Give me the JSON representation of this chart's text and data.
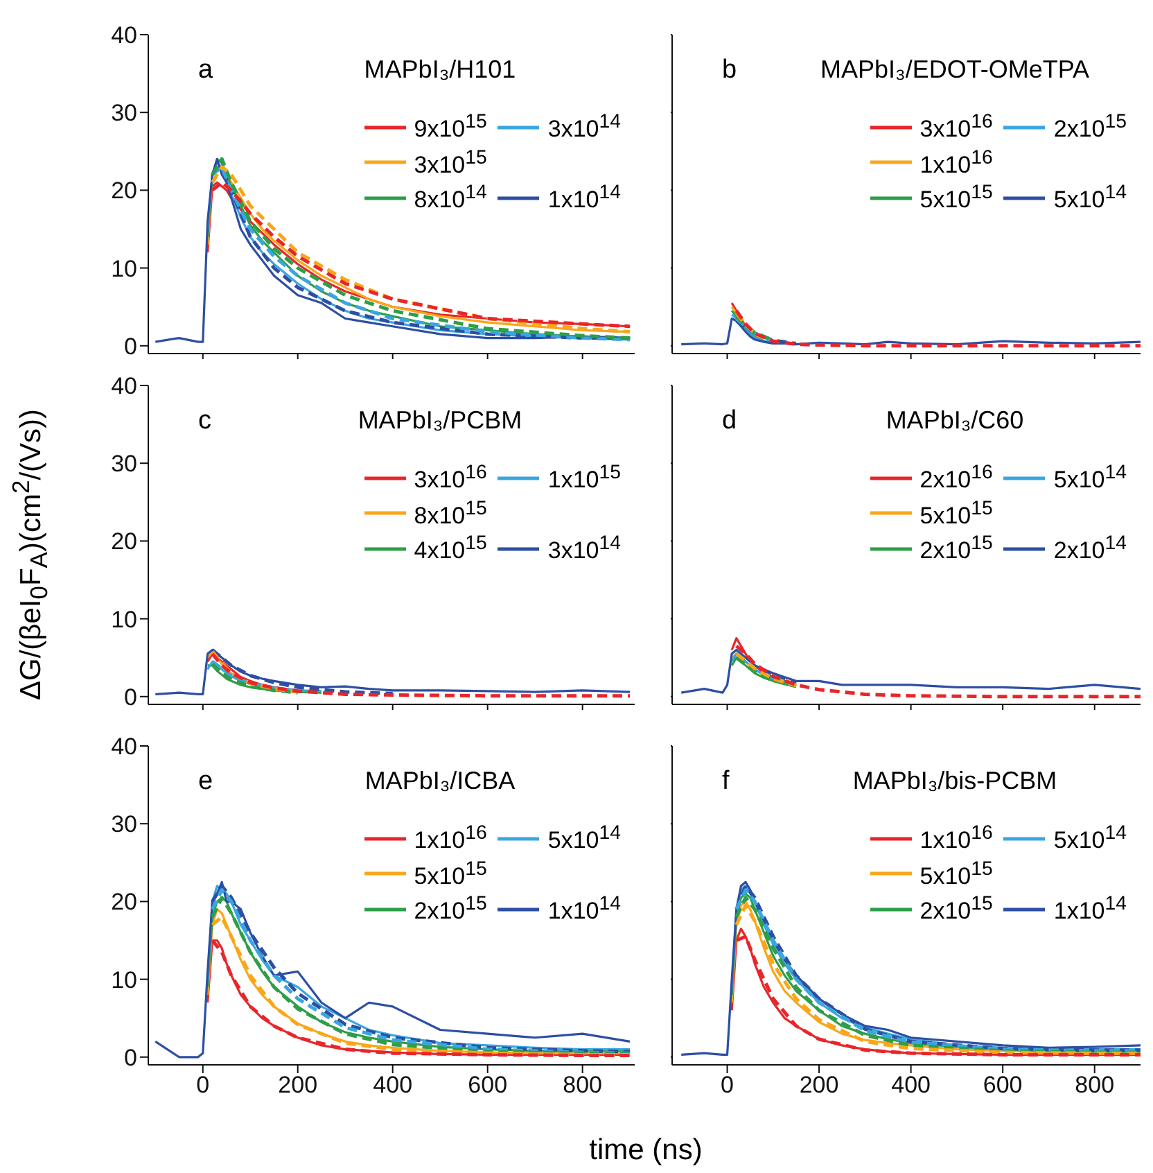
{
  "chart_data": [
    {
      "type": "line",
      "title": "MAPbI₃/H101",
      "annotations": [
        "a"
      ],
      "legend": "top right",
      "line_style": "solid",
      "tick_labels": "y",
      "xlim": [
        -115,
        910
      ],
      "xticks": [
        0,
        200,
        400,
        600,
        800
      ],
      "ylim": [
        -1,
        40
      ],
      "yticks": [
        0,
        10,
        20,
        30,
        40
      ],
      "x": [
        -100,
        -50,
        -10,
        0,
        10,
        20,
        30,
        40,
        50,
        60,
        80,
        100,
        125,
        150,
        200,
        250,
        300,
        350,
        400,
        500,
        600,
        700,
        800,
        900
      ],
      "series": [
        {
          "name": "9x10$^{15}$",
          "color": "#e8262a",
          "values": [
            null,
            null,
            null,
            null,
            12,
            20.5,
            21,
            20.5,
            20,
            19,
            17.5,
            16,
            14.5,
            13,
            10.5,
            8.5,
            7,
            6,
            5,
            4,
            3.5,
            3,
            2.8,
            2.5
          ]
        },
        {
          "name": "3x10$^{15}$",
          "color": "#f9a61a",
          "values": [
            null,
            null,
            null,
            null,
            13,
            22,
            23,
            23,
            22,
            21,
            19,
            17,
            15,
            13.5,
            11,
            9,
            7.5,
            6,
            5,
            3.8,
            3,
            2.5,
            2,
            1.8
          ]
        },
        {
          "name": "8x10$^{14}$",
          "color": "#2e9e48",
          "values": [
            null,
            null,
            null,
            null,
            14,
            22,
            24,
            23.5,
            22,
            20.5,
            18,
            15.5,
            13.5,
            12,
            9,
            7,
            5.5,
            4.5,
            3.8,
            2.5,
            2,
            1.5,
            1.2,
            1
          ]
        },
        {
          "name": "3x10$^{14}$",
          "color": "#3aa6e0",
          "values": [
            null,
            null,
            null,
            null,
            15,
            22,
            23.5,
            23,
            21.5,
            19.5,
            16.5,
            14,
            12,
            10.5,
            8,
            6,
            4.5,
            3.5,
            3,
            2,
            1.5,
            1.2,
            1,
            0.8
          ]
        },
        {
          "name": "1x10$^{14}$",
          "color": "#2d4fa3",
          "values": [
            0.5,
            1,
            0.5,
            0.5,
            16,
            22,
            24,
            22,
            21,
            19,
            15,
            13,
            11,
            9,
            6.5,
            5.5,
            3.5,
            3,
            2.5,
            1.5,
            1,
            1,
            1.2,
            1
          ]
        },
        {
          "color": "#2d4fa3",
          "line_style": "dashed",
          "x": [
            20,
            40,
            60,
            100,
            150,
            200,
            300,
            400,
            600,
            800,
            900
          ],
          "values": [
            22,
            24,
            20,
            14,
            10,
            7.5,
            4.5,
            3,
            1.5,
            1,
            1
          ]
        },
        {
          "color": "#3aa6e0",
          "line_style": "dashed",
          "x": [
            20,
            40,
            60,
            100,
            150,
            200,
            300,
            400,
            600,
            800,
            900
          ],
          "values": [
            22,
            23,
            20,
            15,
            11.5,
            9,
            5.5,
            3.5,
            1.8,
            1,
            0.8
          ]
        },
        {
          "color": "#2e9e48",
          "line_style": "dashed",
          "x": [
            20,
            40,
            60,
            100,
            150,
            200,
            300,
            400,
            600,
            800,
            900
          ],
          "values": [
            22,
            24,
            21,
            16,
            12.5,
            10,
            6.5,
            4.5,
            2.2,
            1.3,
            1
          ]
        },
        {
          "color": "#f9a61a",
          "line_style": "dashed",
          "x": [
            20,
            40,
            60,
            100,
            150,
            200,
            300,
            400,
            600,
            800,
            900
          ],
          "values": [
            21,
            23,
            22,
            18,
            15,
            12,
            8.5,
            6,
            3.5,
            2.2,
            1.8
          ]
        },
        {
          "color": "#e8262a",
          "line_style": "dashed",
          "x": [
            20,
            40,
            60,
            100,
            150,
            200,
            300,
            400,
            600,
            800,
            900
          ],
          "values": [
            20,
            21,
            20,
            17,
            14,
            11.5,
            8,
            6,
            3.5,
            2.8,
            2.5
          ]
        }
      ]
    },
    {
      "type": "line",
      "title": "MAPbI₃/EDOT-OMeTPA",
      "annotations": [
        "b"
      ],
      "legend": "top right",
      "line_style": "solid",
      "tick_labels": false,
      "xlim": [
        -120,
        900
      ],
      "xticks": [
        0,
        200,
        400,
        600,
        800
      ],
      "ylim": [
        -1,
        40
      ],
      "yticks": [
        0,
        10,
        20,
        30,
        40
      ],
      "x": [
        -100,
        -50,
        -10,
        0,
        10,
        20,
        30,
        40,
        50,
        60,
        80,
        100,
        125,
        150,
        200,
        250,
        300,
        350,
        400,
        500,
        600,
        700,
        800,
        900
      ],
      "series": [
        {
          "name": "3x10$^{16}$",
          "color": "#e8262a",
          "values": [
            null,
            null,
            null,
            null,
            5.5,
            4.5,
            3.5,
            2.5,
            1.8,
            1.2,
            0.6,
            0.3,
            null,
            null,
            null,
            null,
            null,
            null,
            null,
            null,
            null,
            null,
            null,
            null
          ]
        },
        {
          "name": "1x10$^{16}$",
          "color": "#f9a61a",
          "values": [
            null,
            null,
            null,
            null,
            5,
            4.2,
            3.2,
            2.4,
            1.7,
            1.2,
            0.6,
            0.4,
            null,
            null,
            null,
            null,
            null,
            null,
            null,
            null,
            null,
            null,
            null,
            null
          ]
        },
        {
          "name": "5x10$^{15}$",
          "color": "#2e9e48",
          "values": [
            null,
            null,
            null,
            null,
            4.5,
            3.8,
            3,
            2.2,
            1.6,
            1.1,
            0.6,
            0.4,
            null,
            null,
            null,
            null,
            null,
            null,
            null,
            null,
            null,
            null,
            null,
            null
          ]
        },
        {
          "name": "2x10$^{15}$",
          "color": "#3aa6e0",
          "values": [
            null,
            null,
            null,
            null,
            4,
            3.5,
            2.8,
            2,
            1.5,
            1,
            0.6,
            0.4,
            null,
            null,
            null,
            null,
            null,
            null,
            null,
            null,
            null,
            null,
            null,
            null
          ]
        },
        {
          "name": "5x10$^{14}$",
          "color": "#2d4fa3",
          "values": [
            0.2,
            0.3,
            0.2,
            0.3,
            3.5,
            3.2,
            2.5,
            1.8,
            1.2,
            0.8,
            0.5,
            0.3,
            0.3,
            0.2,
            0.4,
            0.3,
            0.2,
            0.5,
            0.3,
            0.2,
            0.6,
            0.4,
            0.3,
            0.5
          ]
        },
        {
          "color": "#2d4fa3",
          "line_style": "dashed",
          "x": [
            20,
            40,
            60,
            100,
            150
          ],
          "values": [
            3.2,
            2.4,
            1.6,
            0.7,
            0.3
          ]
        },
        {
          "color": "#3aa6e0",
          "line_style": "dashed",
          "x": [
            20,
            40,
            60,
            100
          ],
          "values": [
            3.5,
            2.5,
            1.6,
            0.7
          ]
        },
        {
          "color": "#2e9e48",
          "line_style": "dashed",
          "x": [
            20,
            40,
            60,
            100
          ],
          "values": [
            3.8,
            2.6,
            1.7,
            0.7
          ]
        },
        {
          "color": "#f9a61a",
          "line_style": "dashed",
          "x": [
            20,
            40,
            60,
            80
          ],
          "values": [
            4.2,
            2.7,
            1.6,
            1
          ]
        },
        {
          "color": "#e8262a",
          "line_style": "dashed",
          "x": [
            20,
            40,
            60,
            100,
            150,
            200,
            300,
            400,
            600,
            800,
            900
          ],
          "values": [
            4.5,
            2.8,
            1.6,
            0.6,
            0.2,
            0.1,
            0,
            0,
            0,
            0,
            0
          ]
        }
      ]
    },
    {
      "type": "line",
      "title": "MAPbI₃/PCBM",
      "annotations": [
        "c"
      ],
      "ylabel": "ΔG/(βeI$_{0}$F$_{A}$)(cm$^{2}$/(Vs))",
      "legend": "top right",
      "line_style": "solid",
      "tick_labels": "y",
      "xlim": [
        -115,
        910
      ],
      "xticks": [
        0,
        200,
        400,
        600,
        800
      ],
      "ylim": [
        -1,
        40
      ],
      "yticks": [
        0,
        10,
        20,
        30,
        40
      ],
      "x": [
        -100,
        -50,
        -10,
        0,
        10,
        20,
        30,
        40,
        50,
        60,
        80,
        100,
        125,
        150,
        200,
        250,
        300,
        350,
        400,
        500,
        600,
        700,
        800,
        900
      ],
      "series": [
        {
          "name": "3x10$^{16}$",
          "color": "#e8262a",
          "values": [
            null,
            null,
            null,
            null,
            4.5,
            5.5,
            5,
            4.5,
            4,
            3.5,
            2.5,
            2,
            1.5,
            1.2,
            0.8,
            0.6,
            null,
            null,
            null,
            null,
            null,
            null,
            null,
            null
          ]
        },
        {
          "name": "8x10$^{15}$",
          "color": "#f9a61a",
          "values": [
            null,
            null,
            null,
            null,
            5,
            5.8,
            5,
            4.2,
            3.5,
            3,
            2.2,
            1.7,
            1.3,
            1,
            0.7,
            0.5,
            null,
            null,
            null,
            null,
            null,
            null,
            null,
            null
          ]
        },
        {
          "name": "4x10$^{15}$",
          "color": "#2e9e48",
          "values": [
            null,
            null,
            null,
            null,
            4,
            4,
            3.3,
            2.8,
            2.3,
            2,
            1.5,
            1.2,
            1,
            0.8,
            0.6,
            0.5,
            null,
            null,
            null,
            null,
            null,
            null,
            null,
            null
          ]
        },
        {
          "name": "1x10$^{15}$",
          "color": "#3aa6e0",
          "values": [
            null,
            null,
            null,
            null,
            3.5,
            4.5,
            4,
            3.5,
            3,
            2.6,
            2,
            1.6,
            1.3,
            1.1,
            0.8,
            0.7,
            null,
            null,
            null,
            null,
            null,
            null,
            null,
            null
          ]
        },
        {
          "name": "3x10$^{14}$",
          "color": "#2d4fa3",
          "values": [
            0.3,
            0.5,
            0.3,
            0.3,
            5.5,
            6,
            5.5,
            5,
            4.5,
            4,
            3.2,
            2.7,
            2.3,
            2,
            1.5,
            1.2,
            1.3,
            1,
            0.8,
            0.8,
            0.7,
            0.6,
            0.8,
            0.6
          ]
        },
        {
          "color": "#2d4fa3",
          "line_style": "dashed",
          "x": [
            20,
            40,
            60,
            100,
            150,
            200,
            300,
            400
          ],
          "values": [
            6,
            5,
            4,
            2.7,
            1.8,
            1.2,
            0.6,
            0.4
          ]
        },
        {
          "color": "#3aa6e0",
          "line_style": "dashed",
          "x": [
            20,
            40,
            60,
            100,
            150,
            200
          ],
          "values": [
            4.5,
            3.6,
            2.7,
            1.7,
            1.1,
            0.7
          ]
        },
        {
          "color": "#2e9e48",
          "line_style": "dashed",
          "x": [
            20,
            40,
            60,
            100,
            150,
            200
          ],
          "values": [
            4.2,
            3,
            2.2,
            1.3,
            0.8,
            0.5
          ]
        },
        {
          "color": "#f9a61a",
          "line_style": "dashed",
          "x": [
            20,
            40,
            60,
            100,
            150,
            200
          ],
          "values": [
            5.8,
            4.3,
            3,
            1.7,
            1,
            0.6
          ]
        },
        {
          "color": "#e8262a",
          "line_style": "dashed",
          "x": [
            20,
            40,
            60,
            100,
            150,
            200,
            300,
            400,
            600,
            800,
            900
          ],
          "values": [
            5.5,
            4,
            3,
            1.8,
            1.1,
            0.7,
            0.3,
            0.2,
            0.1,
            0.1,
            0.1
          ]
        }
      ]
    },
    {
      "type": "line",
      "title": "MAPbI₃/C60",
      "annotations": [
        "d"
      ],
      "legend": "top right",
      "line_style": "solid",
      "tick_labels": false,
      "xlim": [
        -120,
        900
      ],
      "xticks": [
        0,
        200,
        400,
        600,
        800
      ],
      "ylim": [
        -1,
        40
      ],
      "yticks": [
        0,
        10,
        20,
        30,
        40
      ],
      "x": [
        -100,
        -50,
        -10,
        0,
        10,
        20,
        30,
        40,
        50,
        60,
        80,
        100,
        125,
        150,
        200,
        250,
        300,
        350,
        400,
        500,
        600,
        700,
        800,
        900
      ],
      "series": [
        {
          "name": "2x10$^{16}$",
          "color": "#e8262a",
          "values": [
            null,
            null,
            null,
            null,
            6,
            7.5,
            6.5,
            5.5,
            4.5,
            4,
            3,
            2.5,
            2,
            1.5,
            null,
            null,
            null,
            null,
            null,
            null,
            null,
            null,
            null,
            null
          ]
        },
        {
          "name": "5x10$^{15}$",
          "color": "#f9a61a",
          "values": [
            null,
            null,
            null,
            null,
            5,
            5.5,
            5,
            4.5,
            4,
            3.5,
            2.7,
            2.2,
            1.7,
            1.3,
            null,
            null,
            null,
            null,
            null,
            null,
            null,
            null,
            null,
            null
          ]
        },
        {
          "name": "2x10$^{15}$",
          "color": "#2e9e48",
          "values": [
            null,
            null,
            null,
            null,
            4,
            5,
            4.5,
            4,
            3.5,
            3,
            2.4,
            2,
            1.6,
            1.3,
            null,
            null,
            null,
            null,
            null,
            null,
            null,
            null,
            null,
            null
          ]
        },
        {
          "name": "5x10$^{14}$",
          "color": "#3aa6e0",
          "values": [
            null,
            null,
            null,
            null,
            4.5,
            5.5,
            5,
            4.5,
            4,
            3.5,
            2.8,
            2.3,
            1.9,
            1.5,
            null,
            null,
            null,
            null,
            null,
            null,
            null,
            null,
            null,
            null
          ]
        },
        {
          "name": "2x10$^{14}$",
          "color": "#2d4fa3",
          "values": [
            0.5,
            1,
            0.5,
            1.5,
            5.5,
            6,
            5.5,
            5,
            4.5,
            4,
            3.5,
            3,
            2.5,
            2,
            2,
            1.5,
            1.5,
            1.5,
            1.5,
            1.2,
            1.2,
            1,
            1.5,
            1
          ]
        },
        {
          "color": "#2d4fa3",
          "line_style": "dashed",
          "x": [
            20,
            40,
            60,
            100,
            150
          ],
          "values": [
            5.5,
            4.8,
            3.9,
            2.6,
            1.7
          ]
        },
        {
          "color": "#3aa6e0",
          "line_style": "dashed",
          "x": [
            20,
            40,
            60,
            100,
            150
          ],
          "values": [
            5.5,
            4.6,
            3.6,
            2.4,
            1.5
          ]
        },
        {
          "color": "#2e9e48",
          "line_style": "dashed",
          "x": [
            20,
            40,
            60,
            100,
            150
          ],
          "values": [
            5,
            4.1,
            3.2,
            2.1,
            1.3
          ]
        },
        {
          "color": "#f9a61a",
          "line_style": "dashed",
          "x": [
            20,
            40,
            60,
            100,
            150
          ],
          "values": [
            5.5,
            4.6,
            3.6,
            2.3,
            1.4
          ]
        },
        {
          "color": "#e8262a",
          "line_style": "dashed",
          "x": [
            20,
            40,
            60,
            100,
            150,
            200,
            300,
            400,
            600,
            800,
            900
          ],
          "values": [
            6.5,
            5.5,
            4.2,
            2.6,
            1.5,
            0.9,
            0.3,
            0.1,
            0,
            0,
            0
          ]
        }
      ]
    },
    {
      "type": "line",
      "title": "MAPbI₃/ICBA",
      "annotations": [
        "e"
      ],
      "xlabel": "time (ns)",
      "legend": "top right",
      "line_style": "solid",
      "xlim": [
        -115,
        910
      ],
      "xticks": [
        0,
        200,
        400,
        600,
        800
      ],
      "ylim": [
        -1,
        40
      ],
      "yticks": [
        0,
        10,
        20,
        30,
        40
      ],
      "x": [
        -100,
        -50,
        -10,
        0,
        10,
        20,
        30,
        40,
        50,
        60,
        80,
        100,
        125,
        150,
        200,
        250,
        300,
        350,
        400,
        500,
        600,
        700,
        800,
        900
      ],
      "series": [
        {
          "name": "1x10$^{16}$",
          "color": "#e8262a",
          "values": [
            null,
            null,
            null,
            null,
            7,
            15,
            15,
            14,
            12,
            10.5,
            8,
            6.5,
            5,
            4,
            2.5,
            1.5,
            1,
            0.8,
            0.6,
            0.4,
            0.3,
            0.3,
            0.3,
            0.3
          ]
        },
        {
          "name": "5x10$^{15}$",
          "color": "#f9a61a",
          "values": [
            null,
            null,
            null,
            null,
            8,
            17,
            19,
            18.5,
            17,
            15.5,
            12.5,
            10,
            8,
            6.5,
            4.3,
            3,
            2,
            1.5,
            1.2,
            0.8,
            0.6,
            0.5,
            0.5,
            0.5
          ]
        },
        {
          "name": "2x10$^{15}$",
          "color": "#2e9e48",
          "values": [
            null,
            null,
            null,
            null,
            9,
            18,
            20,
            20.5,
            20,
            18.5,
            16,
            13.5,
            11,
            9,
            6.5,
            4.5,
            3.2,
            2.5,
            2,
            1.3,
            1,
            0.8,
            0.8,
            0.8
          ]
        },
        {
          "name": "5x10$^{14}$",
          "color": "#3aa6e0",
          "values": [
            null,
            null,
            null,
            null,
            10,
            20,
            22,
            21.5,
            21,
            20,
            17,
            15,
            12.5,
            10.5,
            9,
            6.5,
            5,
            3.5,
            2.8,
            1.8,
            1.5,
            1.2,
            1,
            1
          ]
        },
        {
          "name": "1x10$^{14}$",
          "color": "#2d4fa3",
          "values": [
            2,
            0,
            0,
            0.5,
            11,
            20,
            21,
            22.5,
            20,
            20,
            19,
            16,
            13,
            10.5,
            11,
            7,
            5,
            7,
            6.5,
            3.5,
            3,
            2.5,
            3,
            2
          ]
        },
        {
          "color": "#2d4fa3",
          "line_style": "dashed",
          "x": [
            20,
            40,
            60,
            100,
            150,
            200,
            300,
            400,
            600,
            800,
            900
          ],
          "values": [
            20,
            22,
            20.5,
            16,
            11.5,
            8.2,
            4.2,
            2.5,
            1.2,
            0.8,
            0.7
          ]
        },
        {
          "color": "#3aa6e0",
          "line_style": "dashed",
          "x": [
            20,
            40,
            60,
            100,
            150,
            200,
            300,
            400,
            600,
            800,
            900
          ],
          "values": [
            19,
            21.5,
            20,
            15,
            10.5,
            7.5,
            3.8,
            2.2,
            1,
            0.6,
            0.5
          ]
        },
        {
          "color": "#2e9e48",
          "line_style": "dashed",
          "x": [
            20,
            40,
            60,
            100,
            150,
            200,
            300,
            400,
            600,
            800,
            900
          ],
          "values": [
            18,
            20.5,
            18.5,
            13.5,
            9,
            6.2,
            3,
            1.6,
            0.7,
            0.5,
            0.4
          ]
        },
        {
          "color": "#f9a61a",
          "line_style": "dashed",
          "x": [
            20,
            40,
            60,
            100,
            150,
            200,
            300,
            400,
            600,
            800,
            900
          ],
          "values": [
            17,
            18,
            15.5,
            10.5,
            6.5,
            4.2,
            1.8,
            1,
            0.5,
            0.3,
            0.3
          ]
        },
        {
          "color": "#e8262a",
          "line_style": "dashed",
          "x": [
            20,
            40,
            60,
            100,
            150,
            200,
            300,
            400,
            600,
            800,
            900
          ],
          "values": [
            15,
            13.5,
            10.5,
            6.5,
            4,
            2.5,
            1,
            0.5,
            0.3,
            0.2,
            0.2
          ]
        }
      ]
    },
    {
      "type": "line",
      "title": "MAPbI₃/bis-PCBM",
      "annotations": [
        "f"
      ],
      "legend": "top right",
      "line_style": "solid",
      "tick_labels": "x",
      "xlim": [
        -120,
        900
      ],
      "xticks": [
        0,
        200,
        400,
        600,
        800
      ],
      "ylim": [
        -1,
        40
      ],
      "yticks": [
        0,
        10,
        20,
        30,
        40
      ],
      "x": [
        -100,
        -50,
        -10,
        0,
        10,
        20,
        30,
        40,
        50,
        60,
        80,
        100,
        125,
        150,
        200,
        250,
        300,
        350,
        400,
        500,
        600,
        700,
        800,
        900
      ],
      "series": [
        {
          "name": "1x10$^{16}$",
          "color": "#e8262a",
          "values": [
            null,
            null,
            null,
            null,
            6,
            15,
            16.5,
            15.5,
            14,
            12,
            9,
            7,
            5,
            4,
            2.3,
            1.5,
            1,
            0.7,
            0.5,
            0.4,
            0.3,
            0.3,
            0.3,
            0.3
          ]
        },
        {
          "name": "5x10$^{15}$",
          "color": "#f9a61a",
          "values": [
            null,
            null,
            null,
            null,
            7,
            17,
            19.5,
            20,
            19,
            17.5,
            14,
            11,
            8.5,
            7,
            4.5,
            3,
            2.2,
            1.8,
            1.5,
            1,
            0.8,
            0.6,
            0.6,
            0.6
          ]
        },
        {
          "name": "2x10$^{15}$",
          "color": "#2e9e48",
          "values": [
            null,
            null,
            null,
            null,
            8,
            18,
            20.5,
            21,
            20.5,
            19,
            16,
            13,
            10.5,
            8.5,
            6,
            4,
            3,
            2.3,
            1.8,
            1.3,
            1,
            0.8,
            0.7,
            0.7
          ]
        },
        {
          "name": "5x10$^{14}$",
          "color": "#3aa6e0",
          "values": [
            null,
            null,
            null,
            null,
            9,
            19,
            21.5,
            22,
            21,
            20,
            17,
            14.5,
            12,
            10,
            7,
            5,
            3.8,
            3,
            2.3,
            1.5,
            1.2,
            1,
            1,
            1
          ]
        },
        {
          "name": "1x10$^{14}$",
          "color": "#2d4fa3",
          "values": [
            0.3,
            0.5,
            0.3,
            0.3,
            10,
            19,
            22,
            22.5,
            21.5,
            20,
            17.5,
            15,
            12.5,
            10.5,
            7.5,
            5.5,
            4,
            3.5,
            2.5,
            2,
            1.5,
            1.2,
            1.3,
            1.5
          ]
        },
        {
          "color": "#2d4fa3",
          "line_style": "dashed",
          "x": [
            20,
            40,
            60,
            100,
            150,
            200,
            300,
            400,
            600,
            800,
            900
          ],
          "values": [
            19,
            22,
            20.5,
            15.5,
            10.5,
            7.5,
            3.6,
            2,
            1.1,
            0.9,
            0.9
          ]
        },
        {
          "color": "#3aa6e0",
          "line_style": "dashed",
          "x": [
            20,
            40,
            60,
            100,
            150,
            200,
            300,
            400,
            600,
            800,
            900
          ],
          "values": [
            19,
            21.5,
            20,
            15,
            10,
            7,
            3.4,
            1.9,
            1,
            0.8,
            0.8
          ]
        },
        {
          "color": "#2e9e48",
          "line_style": "dashed",
          "x": [
            20,
            40,
            60,
            100,
            150,
            200,
            300,
            400,
            600,
            800,
            900
          ],
          "values": [
            18,
            20.5,
            19,
            14,
            9,
            6,
            2.8,
            1.5,
            0.8,
            0.6,
            0.6
          ]
        },
        {
          "color": "#f9a61a",
          "line_style": "dashed",
          "x": [
            20,
            40,
            60,
            100,
            150,
            200,
            300,
            400,
            600,
            800,
            900
          ],
          "values": [
            17,
            19.5,
            17.5,
            12,
            7.5,
            4.8,
            2,
            1.1,
            0.6,
            0.5,
            0.5
          ]
        },
        {
          "color": "#e8262a",
          "line_style": "dashed",
          "x": [
            20,
            40,
            60,
            100,
            150,
            200,
            300,
            400,
            600,
            800,
            900
          ],
          "values": [
            15,
            15.5,
            12.5,
            7.5,
            4,
            2.3,
            0.9,
            0.5,
            0.3,
            0.3,
            0.3
          ]
        }
      ]
    }
  ]
}
